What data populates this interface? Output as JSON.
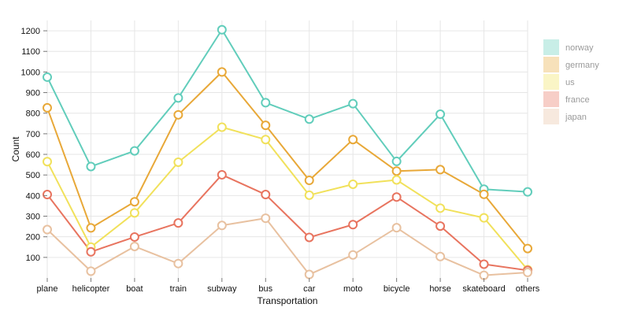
{
  "chart_data": {
    "type": "line",
    "title": "",
    "xlabel": "Transportation",
    "ylabel": "Count",
    "categories": [
      "plane",
      "helicopter",
      "boat",
      "train",
      "subway",
      "bus",
      "car",
      "moto",
      "bicycle",
      "horse",
      "skateboard",
      "others"
    ],
    "ylim": [
      0,
      1250
    ],
    "yticks": [
      100,
      200,
      300,
      400,
      500,
      600,
      700,
      800,
      900,
      1000,
      1100,
      1200
    ],
    "grid": true,
    "legend_position": "right",
    "series": [
      {
        "name": "norway",
        "color": "#61cdbb",
        "values": [
          975,
          541,
          617,
          874,
          1205,
          851,
          771,
          846,
          566,
          795,
          431,
          418
        ]
      },
      {
        "name": "germany",
        "color": "#e8a838",
        "values": [
          826,
          243,
          370,
          792,
          1000,
          741,
          474,
          672,
          519,
          526,
          406,
          143
        ]
      },
      {
        "name": "us",
        "color": "#f1e15b",
        "values": [
          565,
          150,
          316,
          562,
          732,
          672,
          402,
          455,
          476,
          339,
          292,
          40
        ]
      },
      {
        "name": "france",
        "color": "#e8745f",
        "values": [
          405,
          127,
          199,
          267,
          501,
          405,
          197,
          259,
          393,
          252,
          67,
          37
        ]
      },
      {
        "name": "japan",
        "color": "#e8c1a0",
        "values": [
          235,
          33,
          153,
          70,
          255,
          290,
          17,
          112,
          244,
          104,
          13,
          27
        ]
      }
    ]
  }
}
